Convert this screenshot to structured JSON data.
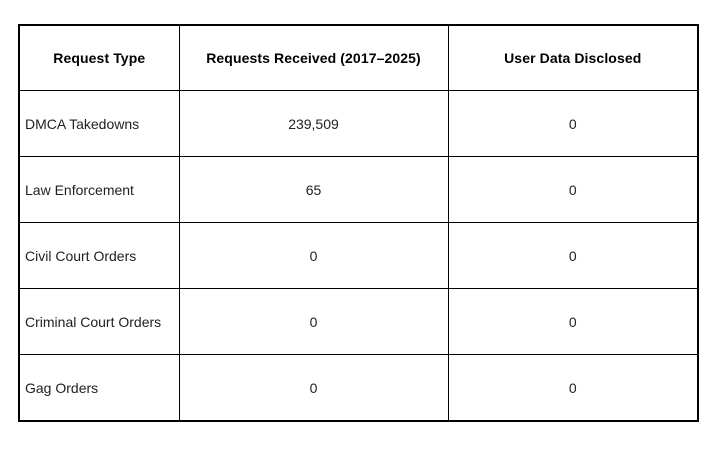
{
  "chart_data": {
    "type": "table",
    "headers": [
      "Request Type",
      "Requests Received (2017–2025)",
      "User Data Disclosed"
    ],
    "rows": [
      [
        "DMCA Takedowns",
        "239,509",
        "0"
      ],
      [
        "Law Enforcement",
        "65",
        "0"
      ],
      [
        "Civil Court Orders",
        "0",
        "0"
      ],
      [
        "Criminal Court Orders",
        "0",
        "0"
      ],
      [
        "Gag Orders",
        "0",
        "0"
      ]
    ],
    "layout": {
      "grid": "all-borders",
      "header_style": "bold-centered",
      "first_column_align": "left",
      "value_columns_align": "center"
    }
  },
  "colors": {
    "border": "#000000",
    "header_text": "#000000",
    "body_text": "#202122",
    "background": "#ffffff"
  }
}
